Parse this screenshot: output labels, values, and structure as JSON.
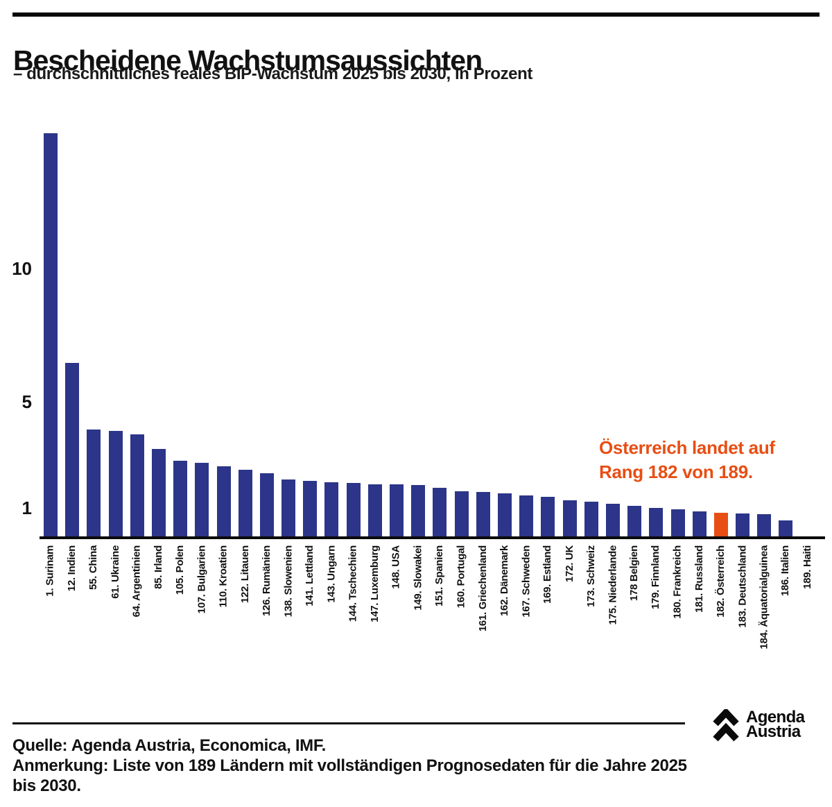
{
  "header": {
    "title": "Bescheidene Wachstumsaussichten",
    "subtitle": "– durchschnittliches reales BIP-Wachstum 2025 bis 2030, in Prozent"
  },
  "chart_data": {
    "type": "bar",
    "title": "Bescheidene Wachstumsaussichten",
    "subtitle": "durchschnittliches reales BIP-Wachstum 2025 bis 2030, in Prozent",
    "unit": "Prozent",
    "grid": false,
    "ylim": [
      0,
      15.5
    ],
    "yticks": [
      1,
      5,
      10
    ],
    "bar_color": "#2c3589",
    "highlight_color": "#e84e14",
    "highlight_index": 31,
    "categories": [
      "1. Surinam",
      "12. Indien",
      "55. China",
      "61. Ukraine",
      "64. Argentinien",
      "85. Irland",
      "105. Polen",
      "107. Bulgarien",
      "110. Kroatien",
      "122. Litauen",
      "126. Rumänien",
      "138. Slowenien",
      "141. Lettland",
      "143. Ungarn",
      "144. Tschechien",
      "147. Luxemburg",
      "148. USA",
      "149. Slowakei",
      "151. Spanien",
      "160. Portugal",
      "161. Griechenland",
      "162. Dänemark",
      "167. Schweden",
      "169. Estland",
      "172. UK",
      "173. Schweiz",
      "175. Niederlande",
      "178 Belgien",
      "179. Finnland",
      "180. Frankreich",
      "181. Russland",
      "182. Österreich",
      "183. Deutschland",
      "184. Äquatorialguinea",
      "186. Italien",
      "189. Haiti"
    ],
    "values": [
      15.1,
      6.45,
      3.95,
      3.88,
      3.77,
      3.22,
      2.78,
      2.7,
      2.57,
      2.44,
      2.31,
      2.05,
      2.02,
      1.95,
      1.92,
      1.88,
      1.87,
      1.86,
      1.76,
      1.61,
      1.6,
      1.55,
      1.45,
      1.4,
      1.27,
      1.24,
      1.16,
      1.06,
      0.98,
      0.93,
      0.85,
      0.82,
      0.78,
      0.77,
      0.51,
      0
    ],
    "annotation": {
      "line1": "Österreich landet auf",
      "line2": "Rang 182 von 189.",
      "color": "#e84e14"
    }
  },
  "footer": {
    "source": "Quelle: Agenda Austria, Economica, IMF.",
    "note_line1": "Anmerkung: Liste von 189 Ländern mit vollständigen Prognosedaten für die Jahre 2025",
    "note_line2": "bis 2030."
  },
  "logo": {
    "line1": "Agenda",
    "line2": "Austria"
  }
}
